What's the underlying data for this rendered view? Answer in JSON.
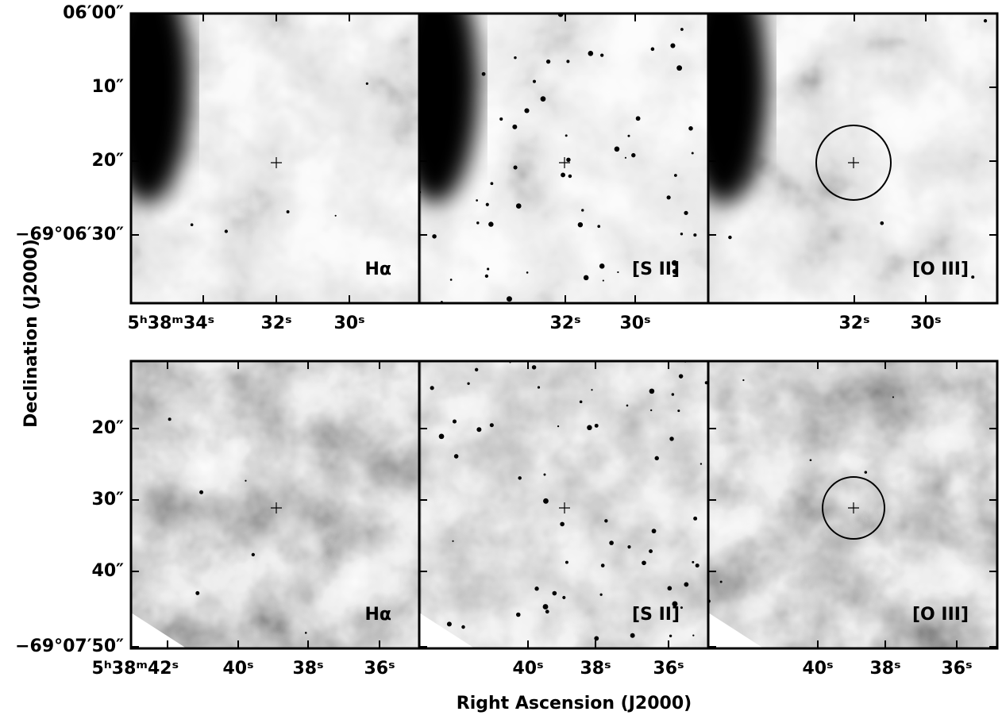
{
  "axes": {
    "x_title": "Right Ascension (J2000)",
    "y_title": "Declination (J2000)"
  },
  "rows": [
    {
      "yticks": [
        "06′00″",
        "10″",
        "20″",
        "−69°06′30″"
      ],
      "panels": [
        {
          "label": "Hα",
          "xticks": [
            "5ʰ38ᵐ34ˢ",
            "32ˢ",
            "30ˢ"
          ]
        },
        {
          "label": "[S II]",
          "xticks": [
            "32ˢ",
            "30ˢ"
          ]
        },
        {
          "label": "[O III]",
          "xticks": [
            "32ˢ",
            "30ˢ"
          ]
        }
      ]
    },
    {
      "yticks": [
        "20″",
        "30″",
        "40″",
        "−69°07′50″"
      ],
      "panels": [
        {
          "label": "Hα",
          "xticks": [
            "5ʰ38ᵐ42ˢ",
            "40ˢ",
            "38ˢ",
            "36ˢ"
          ]
        },
        {
          "label": "[S II]",
          "xticks": [
            "40ˢ",
            "38ˢ",
            "36ˢ"
          ]
        },
        {
          "label": "[O III]",
          "xticks": [
            "40ˢ",
            "38ˢ",
            "36ˢ"
          ]
        }
      ]
    }
  ]
}
